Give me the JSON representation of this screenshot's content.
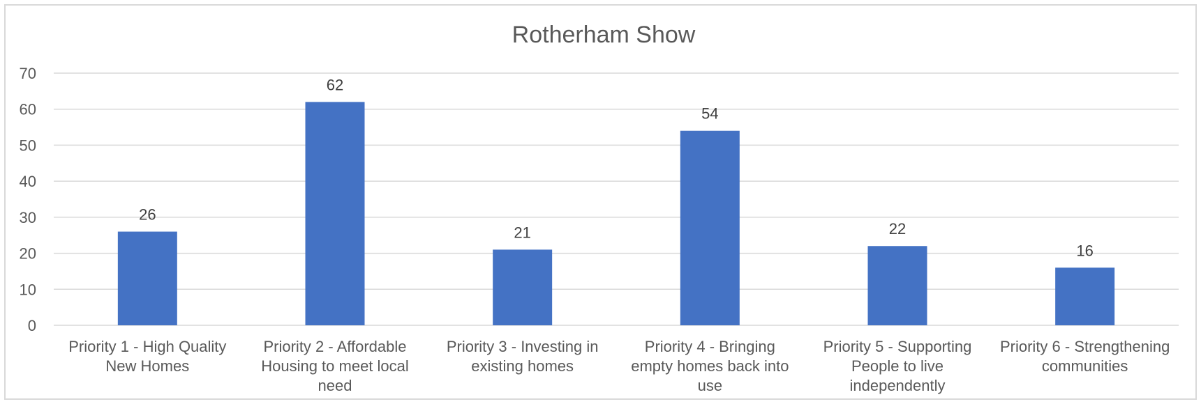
{
  "chart_data": {
    "type": "bar",
    "title": "Rotherham Show",
    "categories": [
      [
        "Priority 1 - High Quality",
        "New Homes"
      ],
      [
        "Priority 2 - Affordable",
        "Housing to meet local",
        "need"
      ],
      [
        "Priority 3 - Investing in",
        "existing homes"
      ],
      [
        "Priority 4 - Bringing",
        "empty homes back into",
        "use"
      ],
      [
        "Priority 5 - Supporting",
        "People to live",
        "independently"
      ],
      [
        "Priority 6 - Strengthening",
        "communities"
      ]
    ],
    "values": [
      26,
      62,
      21,
      54,
      22,
      16
    ],
    "ylim": [
      0,
      70
    ],
    "yticks": [
      0,
      10,
      20,
      30,
      40,
      50,
      60,
      70
    ],
    "grid": true,
    "data_labels": true,
    "bar_color": "#4472c4",
    "grid_color": "#d9d9d9",
    "text_color": "#595959"
  }
}
